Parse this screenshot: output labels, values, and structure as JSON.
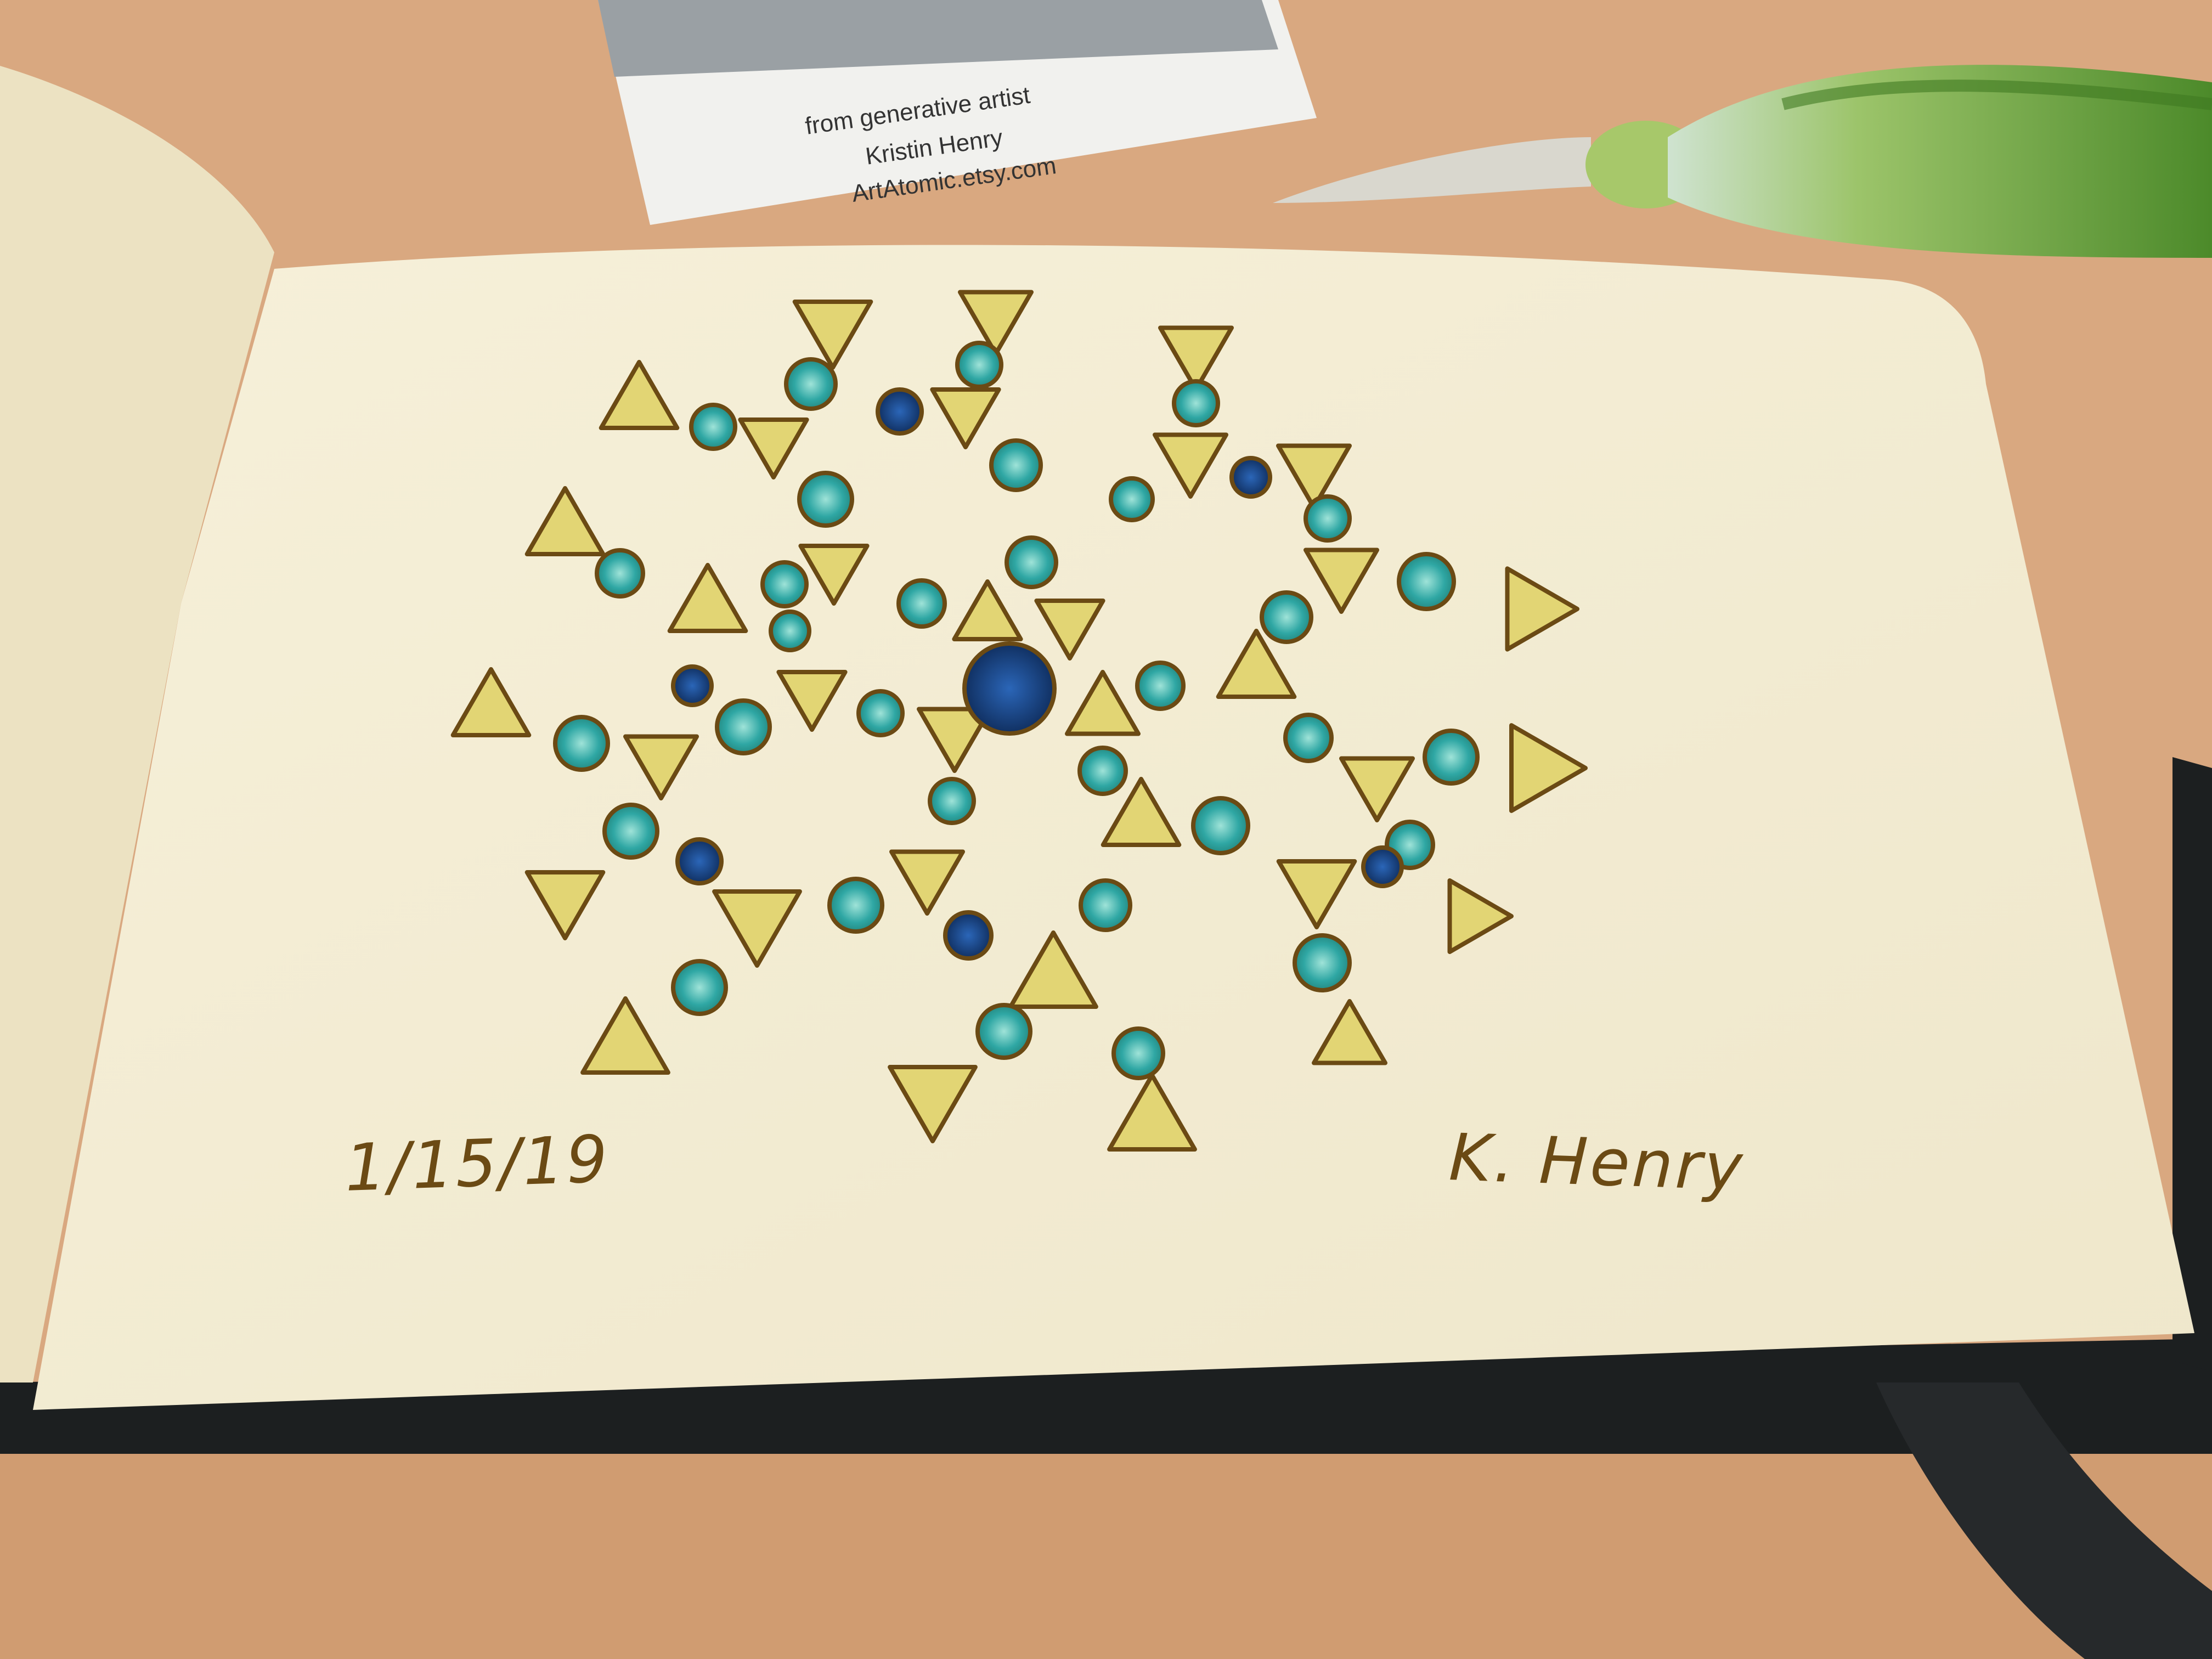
{
  "photo": {
    "subject": "sketchbook-page",
    "card": {
      "lines": [
        "from generative artist",
        "Kristin Henry",
        "ArtAtomic.etsy.com"
      ]
    },
    "drawing": {
      "date": "1/15/19",
      "signature": "K. Henry"
    }
  },
  "colors": {
    "table": "#d9a880",
    "paper": "#f3edd4",
    "left_page": "#ece2c2",
    "cover": "#1c1f20",
    "ink": "#6b4a14",
    "triangle_fill": "#e2d574",
    "dot_fill": "#2fa7a4",
    "dark_dot": "#12346a",
    "pen_glass": "#5f9f3a"
  }
}
